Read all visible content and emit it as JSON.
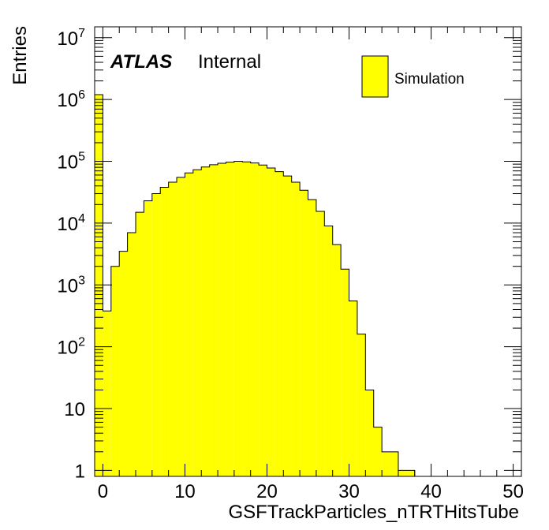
{
  "chart_data": {
    "type": "bar",
    "style": "histogram",
    "title": "",
    "xlabel": "GSFTrackParticles_nTRTHitsTube",
    "ylabel": "Entries",
    "xlim": [
      -1,
      51
    ],
    "ylim": [
      0.8,
      15000000
    ],
    "yscale": "log",
    "grid": false,
    "legend_position": "top-right",
    "bar_color": "#ffff00",
    "edge_color": "#000000",
    "x_ticks": [
      "0",
      "10",
      "20",
      "30",
      "40",
      "50"
    ],
    "y_ticks": [
      {
        "base": "1",
        "exp": ""
      },
      {
        "base": "10",
        "exp": ""
      },
      {
        "base": "10",
        "exp": "2"
      },
      {
        "base": "10",
        "exp": "3"
      },
      {
        "base": "10",
        "exp": "4"
      },
      {
        "base": "10",
        "exp": "5"
      },
      {
        "base": "10",
        "exp": "6"
      },
      {
        "base": "10",
        "exp": "7"
      }
    ],
    "bin_low_edges": [
      -1,
      0,
      1,
      2,
      3,
      4,
      5,
      6,
      7,
      8,
      9,
      10,
      11,
      12,
      13,
      14,
      15,
      16,
      17,
      18,
      19,
      20,
      21,
      22,
      23,
      24,
      25,
      26,
      27,
      28,
      29,
      30,
      31,
      32,
      33,
      34,
      35,
      36,
      37,
      38
    ],
    "bin_width": 1,
    "values": [
      1200000,
      380,
      2000,
      3500,
      7000,
      15000,
      23000,
      30000,
      38000,
      46000,
      55000,
      65000,
      73000,
      81000,
      88000,
      93000,
      97000,
      100000,
      98000,
      94000,
      87000,
      78000,
      68000,
      58000,
      46000,
      34000,
      24000,
      15500,
      9000,
      4500,
      1800,
      550,
      160,
      20,
      5,
      2,
      2,
      1,
      1,
      0
    ],
    "series": [
      {
        "name": "Simulation",
        "values": [
          1200000,
          380,
          2000,
          3500,
          7000,
          15000,
          23000,
          30000,
          38000,
          46000,
          55000,
          65000,
          73000,
          81000,
          88000,
          93000,
          97000,
          100000,
          98000,
          94000,
          87000,
          78000,
          68000,
          58000,
          46000,
          34000,
          24000,
          15500,
          9000,
          4500,
          1800,
          550,
          160,
          20,
          5,
          2,
          2,
          1,
          1,
          0
        ]
      }
    ],
    "annotations": {
      "experiment": "ATLAS",
      "status": "Internal"
    }
  }
}
